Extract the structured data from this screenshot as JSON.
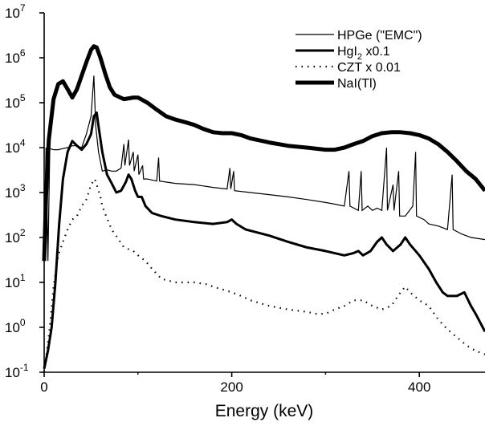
{
  "chart_data": {
    "type": "line",
    "xlabel": "Energy (keV)",
    "ylabel": "",
    "xlim": [
      0,
      470
    ],
    "ylim": [
      0.1,
      10000000
    ],
    "yscale": "log",
    "x_ticks": [
      0,
      200,
      400
    ],
    "x_tick_labels": [
      "0",
      "200",
      "400"
    ],
    "y_ticks": [
      0.1,
      1,
      10,
      100,
      1000,
      10000,
      100000,
      1000000,
      10000000
    ],
    "y_tick_labels": [
      {
        "base": "10",
        "exp": "-1"
      },
      {
        "base": "10",
        "exp": "0"
      },
      {
        "base": "10",
        "exp": "1"
      },
      {
        "base": "10",
        "exp": "2"
      },
      {
        "base": "10",
        "exp": "3"
      },
      {
        "base": "10",
        "exp": "4"
      },
      {
        "base": "10",
        "exp": "5"
      },
      {
        "base": "10",
        "exp": "6"
      },
      {
        "base": "10",
        "exp": "7"
      }
    ],
    "legend": {
      "placement": "top-right",
      "entries": [
        {
          "text": "HPGe (\"EMC\")",
          "style": "thin"
        },
        {
          "text": "HgI",
          "sub": "2",
          "suffix": " x0.1",
          "style": "medium"
        },
        {
          "text": "CZT x 0.01",
          "style": "dotted"
        },
        {
          "text": "NaI(Tl)",
          "style": "thick"
        }
      ]
    },
    "series": [
      {
        "name": "NaI(Tl)",
        "style": "thick",
        "points": [
          [
            0,
            30
          ],
          [
            2,
            800
          ],
          [
            5,
            15000
          ],
          [
            10,
            120000
          ],
          [
            15,
            260000
          ],
          [
            20,
            300000
          ],
          [
            25,
            200000
          ],
          [
            30,
            130000
          ],
          [
            35,
            200000
          ],
          [
            40,
            400000
          ],
          [
            45,
            800000
          ],
          [
            50,
            1500000
          ],
          [
            53,
            1800000
          ],
          [
            56,
            1700000
          ],
          [
            60,
            1000000
          ],
          [
            65,
            450000
          ],
          [
            70,
            220000
          ],
          [
            75,
            150000
          ],
          [
            85,
            120000
          ],
          [
            95,
            130000
          ],
          [
            100,
            130000
          ],
          [
            110,
            100000
          ],
          [
            120,
            70000
          ],
          [
            130,
            50000
          ],
          [
            140,
            42000
          ],
          [
            150,
            37000
          ],
          [
            160,
            32000
          ],
          [
            170,
            26000
          ],
          [
            180,
            22000
          ],
          [
            190,
            21000
          ],
          [
            200,
            21000
          ],
          [
            210,
            19000
          ],
          [
            220,
            16000
          ],
          [
            240,
            13000
          ],
          [
            260,
            11000
          ],
          [
            280,
            10000
          ],
          [
            300,
            9000
          ],
          [
            310,
            9000
          ],
          [
            320,
            10000
          ],
          [
            330,
            12000
          ],
          [
            340,
            14000
          ],
          [
            350,
            18000
          ],
          [
            360,
            21000
          ],
          [
            370,
            22000
          ],
          [
            380,
            22000
          ],
          [
            390,
            21000
          ],
          [
            400,
            19000
          ],
          [
            410,
            16000
          ],
          [
            420,
            12000
          ],
          [
            430,
            8000
          ],
          [
            440,
            5000
          ],
          [
            450,
            3000
          ],
          [
            460,
            2000
          ],
          [
            470,
            1100
          ]
        ]
      },
      {
        "name": "HgI2 x0.1",
        "style": "medium",
        "points": [
          [
            0,
            0.12
          ],
          [
            4,
            0.3
          ],
          [
            8,
            1
          ],
          [
            12,
            10
          ],
          [
            16,
            200
          ],
          [
            20,
            2000
          ],
          [
            25,
            8000
          ],
          [
            30,
            14000
          ],
          [
            35,
            11000
          ],
          [
            40,
            9000
          ],
          [
            45,
            12000
          ],
          [
            50,
            20000
          ],
          [
            53,
            50000
          ],
          [
            56,
            60000
          ],
          [
            58,
            30000
          ],
          [
            62,
            8000
          ],
          [
            67,
            2500
          ],
          [
            72,
            1600
          ],
          [
            77,
            1000
          ],
          [
            82,
            1100
          ],
          [
            87,
            1700
          ],
          [
            90,
            2500
          ],
          [
            93,
            2000
          ],
          [
            97,
            1100
          ],
          [
            100,
            800
          ],
          [
            104,
            800
          ],
          [
            108,
            500
          ],
          [
            115,
            350
          ],
          [
            125,
            300
          ],
          [
            140,
            250
          ],
          [
            160,
            220
          ],
          [
            180,
            200
          ],
          [
            195,
            220
          ],
          [
            200,
            250
          ],
          [
            205,
            200
          ],
          [
            215,
            150
          ],
          [
            240,
            110
          ],
          [
            260,
            80
          ],
          [
            280,
            60
          ],
          [
            300,
            50
          ],
          [
            320,
            40
          ],
          [
            330,
            45
          ],
          [
            335,
            50
          ],
          [
            340,
            40
          ],
          [
            348,
            50
          ],
          [
            355,
            80
          ],
          [
            360,
            100
          ],
          [
            365,
            70
          ],
          [
            372,
            50
          ],
          [
            380,
            70
          ],
          [
            385,
            100
          ],
          [
            390,
            70
          ],
          [
            400,
            40
          ],
          [
            410,
            20
          ],
          [
            418,
            10
          ],
          [
            425,
            6
          ],
          [
            430,
            5
          ],
          [
            440,
            5
          ],
          [
            448,
            6
          ],
          [
            455,
            3
          ],
          [
            460,
            2
          ],
          [
            470,
            0.8
          ]
        ]
      },
      {
        "name": "HPGe (\"EMC\")",
        "style": "thin",
        "points": [
          [
            0,
            50
          ],
          [
            2,
            10000
          ],
          [
            4,
            30
          ],
          [
            6,
            9500
          ],
          [
            10,
            9000
          ],
          [
            15,
            9000
          ],
          [
            20,
            9500
          ],
          [
            25,
            10000
          ],
          [
            30,
            11000
          ],
          [
            35,
            11000
          ],
          [
            40,
            10000
          ],
          [
            45,
            20000
          ],
          [
            50,
            50000
          ],
          [
            53,
            400000
          ],
          [
            55,
            30000
          ],
          [
            58,
            8000
          ],
          [
            62,
            3000
          ],
          [
            67,
            3200
          ],
          [
            72,
            3000
          ],
          [
            77,
            3000
          ],
          [
            82,
            3500
          ],
          [
            85,
            12000
          ],
          [
            86,
            4000
          ],
          [
            90,
            15000
          ],
          [
            91,
            4000
          ],
          [
            95,
            8000
          ],
          [
            96,
            3000
          ],
          [
            100,
            7000
          ],
          [
            101,
            2500
          ],
          [
            105,
            4000
          ],
          [
            106,
            2000
          ],
          [
            110,
            2000
          ],
          [
            120,
            1800
          ],
          [
            122,
            6000
          ],
          [
            123,
            1800
          ],
          [
            140,
            1600
          ],
          [
            160,
            1500
          ],
          [
            180,
            1300
          ],
          [
            195,
            1200
          ],
          [
            198,
            3500
          ],
          [
            199,
            1200
          ],
          [
            202,
            3000
          ],
          [
            203,
            1100
          ],
          [
            220,
            1000
          ],
          [
            240,
            900
          ],
          [
            260,
            800
          ],
          [
            280,
            700
          ],
          [
            300,
            600
          ],
          [
            310,
            550
          ],
          [
            320,
            500
          ],
          [
            325,
            3000
          ],
          [
            326,
            500
          ],
          [
            335,
            400
          ],
          [
            338,
            3000
          ],
          [
            339,
            400
          ],
          [
            345,
            500
          ],
          [
            350,
            400
          ],
          [
            355,
            450
          ],
          [
            360,
            400
          ],
          [
            365,
            10000
          ],
          [
            366,
            400
          ],
          [
            372,
            1500
          ],
          [
            373,
            400
          ],
          [
            378,
            3000
          ],
          [
            379,
            300
          ],
          [
            385,
            300
          ],
          [
            393,
            500
          ],
          [
            396,
            8000
          ],
          [
            397,
            300
          ],
          [
            405,
            250
          ],
          [
            410,
            200
          ],
          [
            420,
            180
          ],
          [
            430,
            150
          ],
          [
            435,
            2500
          ],
          [
            436,
            150
          ],
          [
            445,
            120
          ],
          [
            455,
            100
          ],
          [
            470,
            90
          ]
        ]
      },
      {
        "name": "CZT x 0.01",
        "style": "dotted",
        "points": [
          [
            0,
            0.1
          ],
          [
            3,
            0.3
          ],
          [
            6,
            1
          ],
          [
            10,
            8
          ],
          [
            15,
            40
          ],
          [
            20,
            80
          ],
          [
            25,
            150
          ],
          [
            30,
            250
          ],
          [
            35,
            300
          ],
          [
            40,
            500
          ],
          [
            45,
            700
          ],
          [
            50,
            1500
          ],
          [
            54,
            2000
          ],
          [
            56,
            1500
          ],
          [
            60,
            800
          ],
          [
            62,
            500
          ],
          [
            66,
            300
          ],
          [
            72,
            150
          ],
          [
            78,
            100
          ],
          [
            85,
            60
          ],
          [
            95,
            50
          ],
          [
            100,
            40
          ],
          [
            108,
            30
          ],
          [
            115,
            20
          ],
          [
            125,
            12
          ],
          [
            140,
            10
          ],
          [
            160,
            10
          ],
          [
            175,
            9
          ],
          [
            180,
            8
          ],
          [
            190,
            7
          ],
          [
            200,
            6
          ],
          [
            210,
            5
          ],
          [
            220,
            4
          ],
          [
            240,
            3
          ],
          [
            260,
            2.5
          ],
          [
            280,
            2.2
          ],
          [
            290,
            2
          ],
          [
            300,
            2
          ],
          [
            310,
            2.5
          ],
          [
            320,
            3
          ],
          [
            330,
            4
          ],
          [
            340,
            4
          ],
          [
            350,
            3
          ],
          [
            360,
            2.5
          ],
          [
            370,
            3
          ],
          [
            380,
            6
          ],
          [
            385,
            8
          ],
          [
            390,
            6
          ],
          [
            400,
            4
          ],
          [
            410,
            3
          ],
          [
            420,
            1.5
          ],
          [
            430,
            0.9
          ],
          [
            440,
            0.6
          ],
          [
            450,
            0.4
          ],
          [
            460,
            0.3
          ],
          [
            470,
            0.25
          ]
        ]
      }
    ]
  }
}
